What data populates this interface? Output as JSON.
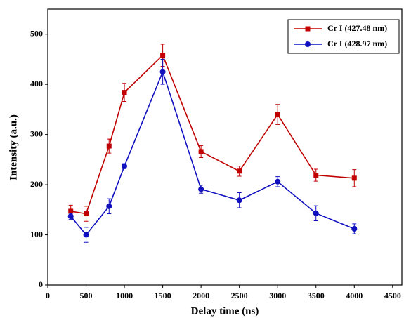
{
  "chart_data": {
    "type": "line",
    "xlabel": "Delay time (ns)",
    "ylabel": "Intensity (a.u.)",
    "x": [
      300,
      500,
      800,
      1000,
      1500,
      2000,
      2500,
      3000,
      3500,
      4000
    ],
    "series": [
      {
        "name": "Cr I (427.48 nm)",
        "color": "#c00000",
        "marker": "square",
        "values": [
          147,
          142,
          277,
          384,
          458,
          266,
          227,
          340,
          219,
          213
        ],
        "errors": [
          12,
          15,
          14,
          18,
          22,
          12,
          10,
          20,
          12,
          17
        ]
      },
      {
        "name": "Cr I (428.97 nm)",
        "color": "#1010c0",
        "marker": "circle",
        "values": [
          137,
          100,
          157,
          237,
          425,
          191,
          169,
          206,
          143,
          112
        ],
        "errors": [
          6,
          15,
          15,
          5,
          25,
          8,
          15,
          10,
          15,
          10
        ]
      }
    ],
    "xlim": [
      0,
      4630
    ],
    "xticks": [
      0,
      500,
      1000,
      1500,
      2000,
      2500,
      3000,
      3500,
      4000,
      4500
    ],
    "ylim": [
      0,
      550
    ],
    "yticks": [
      0,
      100,
      200,
      300,
      400,
      500
    ],
    "legend": "upper right"
  }
}
